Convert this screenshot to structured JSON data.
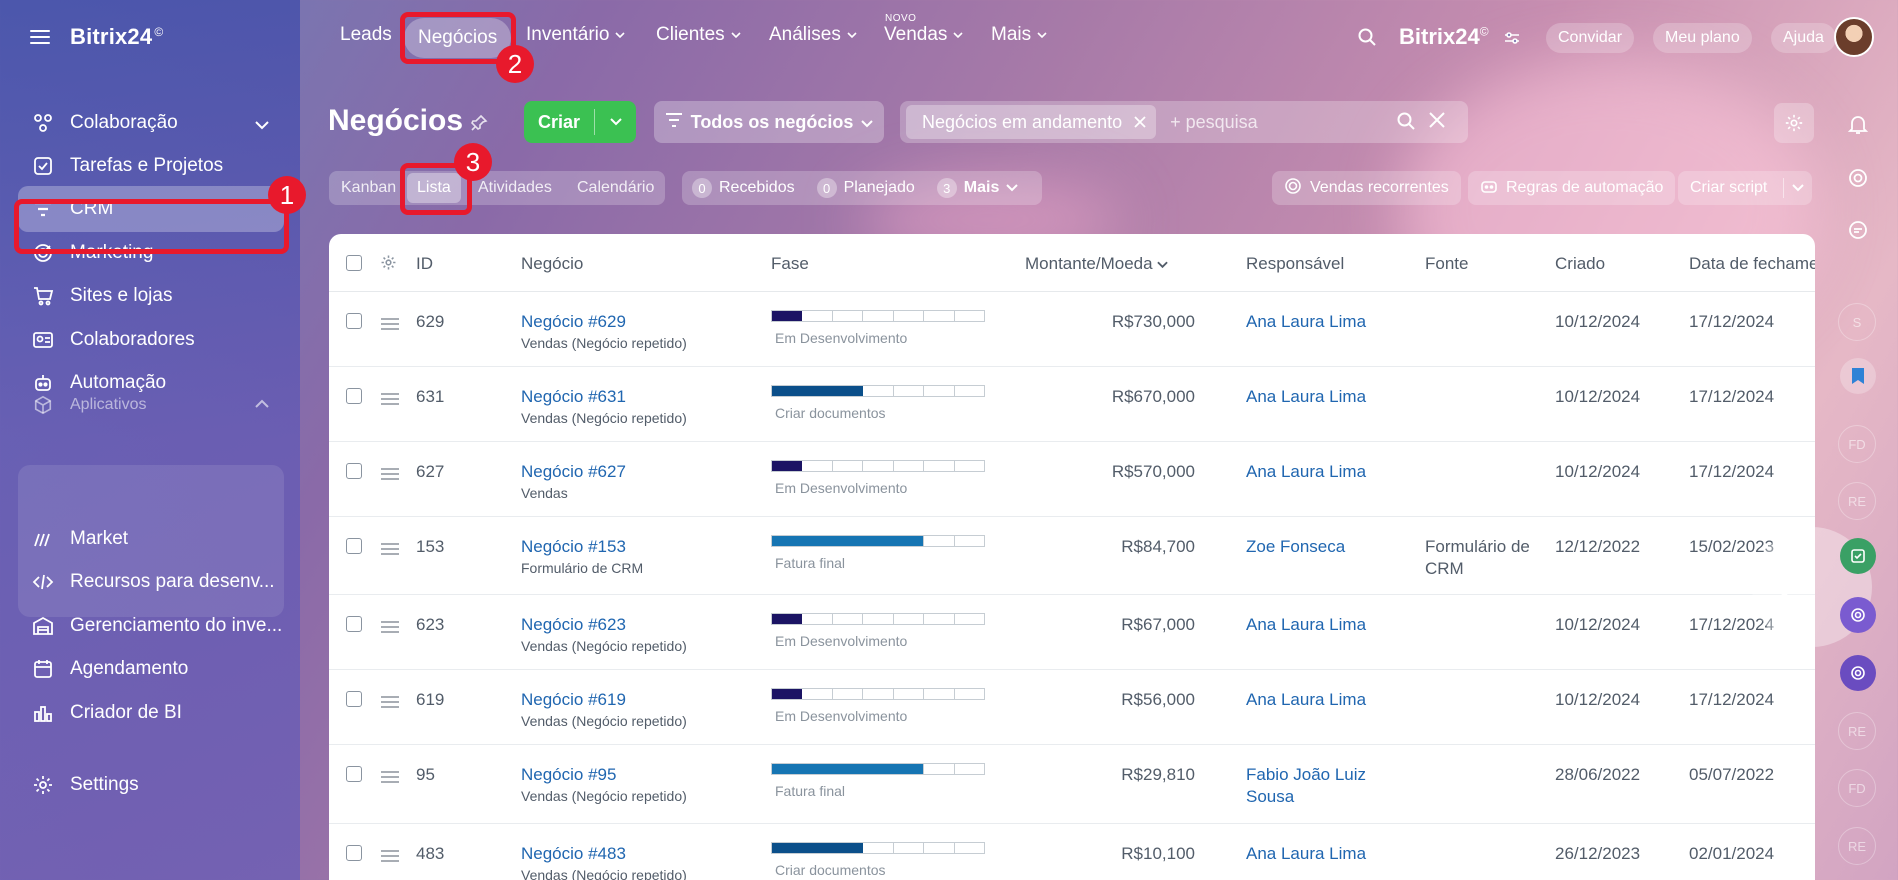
{
  "app": {
    "name": "Bitrix24",
    "superscript": "©"
  },
  "sidebar": {
    "items": [
      {
        "label": "Colaboração"
      },
      {
        "label": "Tarefas e Projetos"
      },
      {
        "label": "CRM"
      },
      {
        "label": "Marketing"
      },
      {
        "label": "Sites e lojas"
      },
      {
        "label": "Colaboradores"
      },
      {
        "label": "Automação"
      },
      {
        "label": "Aplicativos"
      },
      {
        "label": "Market"
      },
      {
        "label": "Recursos para desenv..."
      },
      {
        "label": "Gerenciamento do inve..."
      },
      {
        "label": "Agendamento"
      },
      {
        "label": "Criador de BI"
      },
      {
        "label": "Settings"
      }
    ]
  },
  "topnav": {
    "items": [
      {
        "label": "Leads"
      },
      {
        "label": "Negócios"
      },
      {
        "label": "Inventário"
      },
      {
        "label": "Clientes"
      },
      {
        "label": "Análises"
      },
      {
        "label": "Vendas"
      },
      {
        "label": "Mais"
      }
    ],
    "new_badge": "NOVO",
    "brand": "Bitrix24",
    "invite": "Convidar",
    "my_plan": "Meu plano",
    "help": "Ajuda"
  },
  "page": {
    "title": "Negócios",
    "create_label": "Criar",
    "filter_label": "Todos os negócios",
    "search_chip": "Negócios em andamento",
    "search_placeholder": "+ pesquisa"
  },
  "view_tabs": [
    "Kanban",
    "Lista",
    "Atividades",
    "Calendário"
  ],
  "counters": [
    {
      "count": "0",
      "label": "Recebidos"
    },
    {
      "count": "0",
      "label": "Planejado"
    },
    {
      "count": "3",
      "label": "Mais"
    }
  ],
  "toolbar_right": {
    "recurring": "Vendas recorrentes",
    "automation": "Regras de automação",
    "script": "Criar script"
  },
  "annotations": [
    "1",
    "2",
    "3"
  ],
  "table": {
    "headers": [
      "ID",
      "Negócio",
      "Fase",
      "Montante/Moeda",
      "Responsável",
      "Fonte",
      "Criado",
      "Data de fechame"
    ],
    "rows": [
      {
        "id": "629",
        "deal": "Negócio #629",
        "sub": "Vendas (Negócio repetido)",
        "stage": "Em Desenvolvimento",
        "progress": 0.14,
        "stage_color": "#1b1464",
        "amount": "R$730,000",
        "resp": "Ana Laura Lima",
        "source": "",
        "created": "10/12/2024",
        "close": "17/12/2024"
      },
      {
        "id": "631",
        "deal": "Negócio #631",
        "sub": "Vendas (Negócio repetido)",
        "stage": "Criar documentos",
        "progress": 0.43,
        "stage_color": "#0b4f8a",
        "amount": "R$670,000",
        "resp": "Ana Laura Lima",
        "source": "",
        "created": "10/12/2024",
        "close": "17/12/2024"
      },
      {
        "id": "627",
        "deal": "Negócio #627",
        "sub": "Vendas",
        "stage": "Em Desenvolvimento",
        "progress": 0.14,
        "stage_color": "#1b1464",
        "amount": "R$570,000",
        "resp": "Ana Laura Lima",
        "source": "",
        "created": "10/12/2024",
        "close": "17/12/2024"
      },
      {
        "id": "153",
        "deal": "Negócio #153",
        "sub": "Formulário de CRM",
        "stage": "Fatura final",
        "progress": 0.71,
        "stage_color": "#1675b3",
        "amount": "R$84,700",
        "resp": "Zoe Fonseca",
        "source": "Formulário de CRM",
        "created": "12/12/2022",
        "close": "15/02/2023"
      },
      {
        "id": "623",
        "deal": "Negócio #623",
        "sub": "Vendas (Negócio repetido)",
        "stage": "Em Desenvolvimento",
        "progress": 0.14,
        "stage_color": "#1b1464",
        "amount": "R$67,000",
        "resp": "Ana Laura Lima",
        "source": "",
        "created": "10/12/2024",
        "close": "17/12/2024"
      },
      {
        "id": "619",
        "deal": "Negócio #619",
        "sub": "Vendas (Negócio repetido)",
        "stage": "Em Desenvolvimento",
        "progress": 0.14,
        "stage_color": "#1b1464",
        "amount": "R$56,000",
        "resp": "Ana Laura Lima",
        "source": "",
        "created": "10/12/2024",
        "close": "17/12/2024"
      },
      {
        "id": "95",
        "deal": "Negócio #95",
        "sub": "Vendas (Negócio repetido)",
        "stage": "Fatura final",
        "progress": 0.71,
        "stage_color": "#1675b3",
        "amount": "R$29,810",
        "resp": "Fabio João Luiz Sousa",
        "source": "",
        "created": "28/06/2022",
        "close": "05/07/2022"
      },
      {
        "id": "483",
        "deal": "Negócio #483",
        "sub": "Vendas (Negócio repetido)",
        "stage": "Criar documentos",
        "progress": 0.43,
        "stage_color": "#0b4f8a",
        "amount": "R$10,100",
        "resp": "Ana Laura Lima",
        "source": "",
        "created": "26/12/2023",
        "close": "02/01/2024"
      }
    ]
  },
  "rail": [
    "S",
    "FD",
    "RE",
    "RE",
    "FD",
    "RE"
  ],
  "colors": {
    "accent_green": "#3bc152",
    "link": "#2066b0",
    "annotation_red": "#e8192c"
  }
}
